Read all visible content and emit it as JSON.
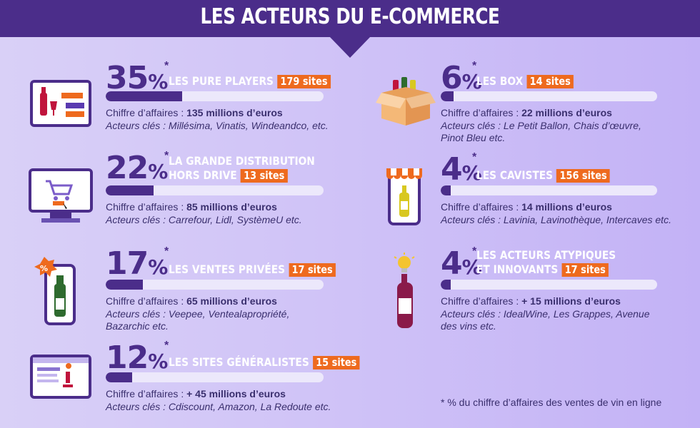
{
  "title": "LES ACTEURS DU E-COMMERCE",
  "sites_suffix": "sites",
  "blocks": [
    {
      "pct": "35",
      "sign": "%",
      "star": "*",
      "label1": "LES PURE PLAYERS",
      "label2": "",
      "sites": "179 sites",
      "share": 0.35,
      "ca_prefix": "Chiffre d’affaires : ",
      "ca_value": "135 millions d’euros",
      "actors": "Acteurs clés : Millésima, Vinatis, Windeandco, etc.",
      "icon": "laptop-wine-icon"
    },
    {
      "pct": "22",
      "sign": "%",
      "star": "*",
      "label1": "LA GRANDE DISTRIBUTION",
      "label2": "HORS DRIVE",
      "sites": "13 sites",
      "share": 0.22,
      "ca_prefix": "Chiffre d’affaires : ",
      "ca_value": "85 millions d’euros",
      "actors": "Acteurs clés : Carrefour, Lidl, SystèmeU etc.",
      "icon": "monitor-cart-icon"
    },
    {
      "pct": "17",
      "sign": "%",
      "star": "*",
      "label1": "LES VENTES PRIVÉES",
      "label2": "",
      "sites": "17 sites",
      "share": 0.17,
      "ca_prefix": "Chiffre d’affaires : ",
      "ca_value": "65 millions d’euros",
      "actors": "Acteurs clés : Veepee, Ventealapropriété, Bazarchic etc.",
      "icon": "discount-bottle-icon"
    },
    {
      "pct": "12",
      "sign": "%",
      "star": "*",
      "label1": "LES SITES GÉNÉRALISTES",
      "label2": "",
      "sites": "15 sites",
      "share": 0.12,
      "ca_prefix": "Chiffre d’affaires : ",
      "ca_value": "+ 45 millions d’euros",
      "actors": "Acteurs clés : Cdiscount, Amazon, La Redoute etc.",
      "icon": "website-icon"
    },
    {
      "pct": "6",
      "sign": "%",
      "star": "*",
      "label1": "LES BOX",
      "label2": "",
      "sites": "14 sites",
      "share": 0.06,
      "ca_prefix": "Chiffre d’affaires : ",
      "ca_value": "22 millions d’euros",
      "actors": "Acteurs clés : Le Petit Ballon, Chais d’œuvre, Pinot Bleu etc.",
      "icon": "wine-box-icon"
    },
    {
      "pct": "4",
      "sign": "%",
      "star": "*",
      "label1": "LES CAVISTES",
      "label2": "",
      "sites": "156 sites",
      "share": 0.04,
      "ca_prefix": "Chiffre d’affaires : ",
      "ca_value": "14 millions d’euros",
      "actors": "Acteurs clés : Lavinia, Lavinothèque, Intercaves etc.",
      "icon": "shop-bottle-icon"
    },
    {
      "pct": "4",
      "sign": "%",
      "star": "*",
      "label1": "LES ACTEURS ATYPIQUES",
      "label2": "ET INNOVANTS",
      "sites": "17 sites",
      "share": 0.04,
      "ca_prefix": "Chiffre d’affaires : ",
      "ca_value": "+ 15 millions d’euros",
      "actors": "Acteurs clés :  IdealWine, Les Grappes, Avenue des vins etc.",
      "icon": "bulb-bottle-icon"
    }
  ],
  "footnote": "* % du chiffre d’affaires des ventes de vin en ligne",
  "colors": {
    "primary": "#4b2d8a",
    "accent": "#ee6a1e",
    "bar_bg": "#ece8fb"
  }
}
